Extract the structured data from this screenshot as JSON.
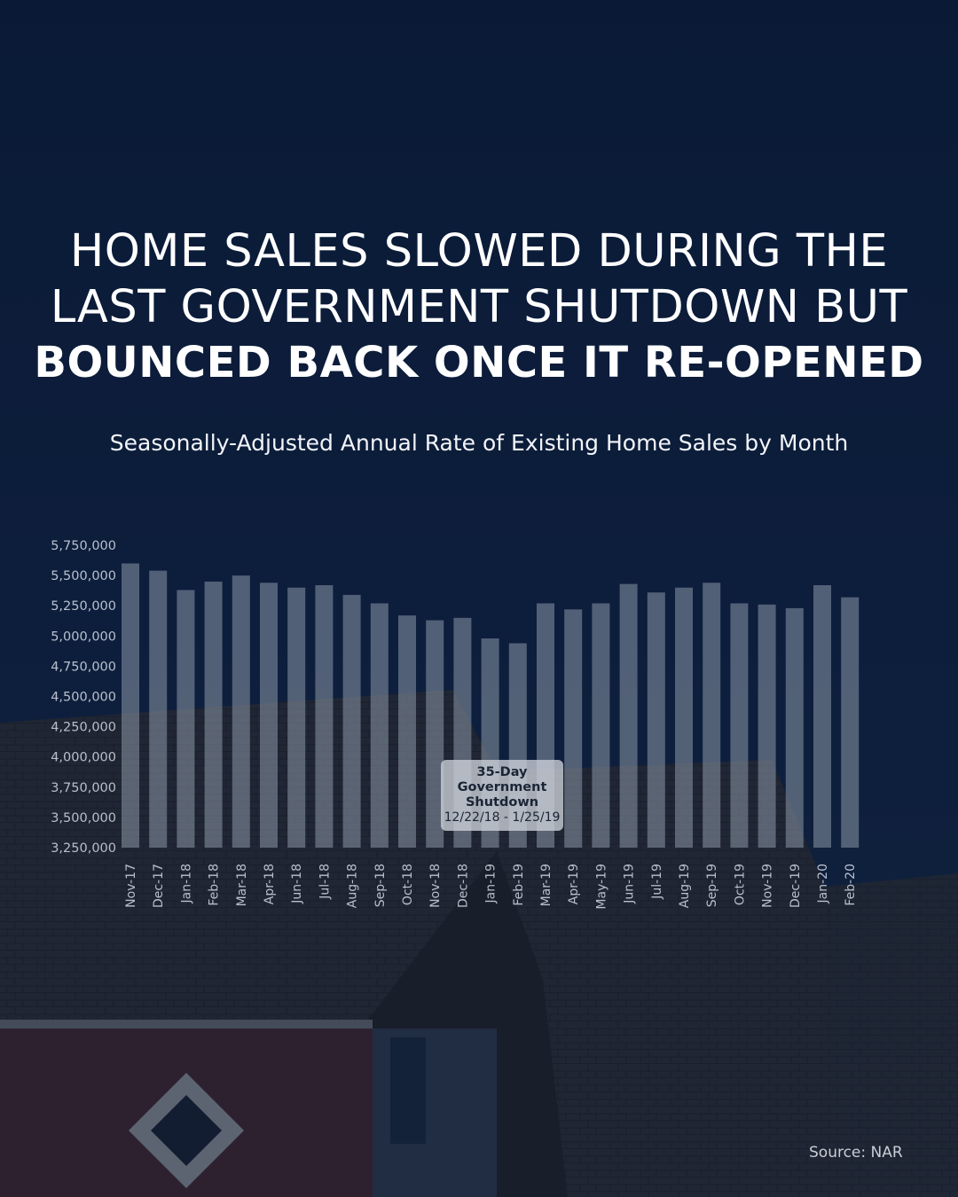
{
  "headline": {
    "line1": "HOME SALES SLOWED DURING THE",
    "line2": "LAST GOVERNMENT SHUTDOWN BUT",
    "line3": "BOUNCED BACK ONCE IT RE-OPENED"
  },
  "subtitle": "Seasonally-Adjusted Annual Rate of Existing Home Sales by Month",
  "annotation": {
    "line1": "35-Day",
    "line2": "Government",
    "line3": "Shutdown",
    "dates": "12/22/18 - 1/25/19"
  },
  "source": "Source: NAR",
  "colors": {
    "background": "#0c1e3d",
    "bar": "#8c97a8",
    "text": "#ffffff"
  },
  "chart_data": {
    "type": "bar",
    "categories": [
      "Nov-17",
      "Dec-17",
      "Jan-18",
      "Feb-18",
      "Mar-18",
      "Apr-18",
      "Jun-18",
      "Jul-18",
      "Aug-18",
      "Sep-18",
      "Oct-18",
      "Nov-18",
      "Dec-18",
      "Jan-19",
      "Feb-19",
      "Mar-19",
      "Apr-19",
      "May-19",
      "Jun-19",
      "Jul-19",
      "Aug-19",
      "Sep-19",
      "Oct-19",
      "Nov-19",
      "Dec-19",
      "Jan-20",
      "Feb-20"
    ],
    "values": [
      5600000,
      5540000,
      5380000,
      5450000,
      5500000,
      5440000,
      5400000,
      5420000,
      5340000,
      5270000,
      5170000,
      5130000,
      5150000,
      4980000,
      4940000,
      5270000,
      5220000,
      5270000,
      5430000,
      5360000,
      5400000,
      5440000,
      5270000,
      5260000,
      5230000,
      5420000,
      5320000
    ],
    "title": "Seasonally-Adjusted Annual Rate of Existing Home Sales by Month",
    "xlabel": "",
    "ylabel": "",
    "ylim": [
      3250000,
      5750000
    ],
    "yticks": [
      "3,250,000",
      "3,500,000",
      "3,750,000",
      "4,000,000",
      "4,250,000",
      "4,500,000",
      "4,750,000",
      "5,000,000",
      "5,250,000",
      "5,500,000",
      "5,750,000"
    ],
    "ytick_values": [
      3250000,
      3500000,
      3750000,
      4000000,
      4250000,
      4500000,
      4750000,
      5000000,
      5250000,
      5500000,
      5750000
    ],
    "grid": false,
    "legend": "none"
  }
}
